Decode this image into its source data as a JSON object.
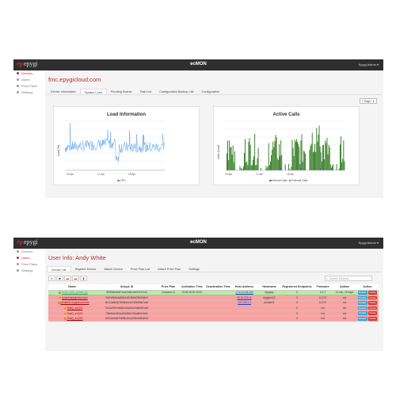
{
  "header": {
    "logo": "epygi",
    "app_title": "ecMON",
    "account": "Epygi Admin ▾",
    "colors": {
      "bar": "#2e2e2e",
      "brand": "#c0282d"
    }
  },
  "sidebar": {
    "items": [
      {
        "label": "Devices",
        "icon": "devices-icon"
      },
      {
        "label": "Users",
        "icon": "users-icon"
      },
      {
        "label": "Price Plans",
        "icon": "price-plans-icon"
      },
      {
        "label": "Settings",
        "icon": "settings-icon"
      }
    ]
  },
  "screen1": {
    "title": "fmc.epygicloud.com",
    "active_sidebar": "Devices",
    "tabs": [
      "Device Information",
      "System Load",
      "Pending Events",
      "Task List",
      "Configuration Backup List",
      "Configuration"
    ],
    "active_tab": "System Load",
    "range_select": "7 Days",
    "charts": {
      "load": {
        "title": "Load Information",
        "y_label": "Load (%)",
        "x_ticks": [
          "16 Apr",
          "17 Apr",
          "18 Apr"
        ],
        "legend": "CPU"
      },
      "calls": {
        "title": "Active Calls",
        "y_label": "Calls Count",
        "x_ticks": [
          "16 Apr",
          "17 Apr",
          "18 Apr"
        ],
        "legend": [
          "Internal Calls",
          "External Calls"
        ]
      }
    }
  },
  "chart_data": [
    {
      "type": "line",
      "title": "Load Information",
      "ylabel": "Load (%)",
      "x_ticks": [
        "16 Apr",
        "17 Apr",
        "18 Apr"
      ],
      "series": [
        {
          "name": "CPU",
          "color": "#3a8ee6"
        }
      ]
    },
    {
      "type": "bar",
      "title": "Active Calls",
      "ylabel": "Calls Count",
      "x_ticks": [
        "16 Apr",
        "17 Apr",
        "18 Apr"
      ],
      "series": [
        {
          "name": "Internal Calls",
          "color": "#2f7a1f"
        },
        {
          "name": "External Calls",
          "color": "#2d5fb8"
        }
      ]
    }
  ],
  "screen2": {
    "title": "User Info: Andy White",
    "active_sidebar": "Users",
    "tabs": [
      "Device List",
      "Register Device",
      "Attach Device",
      "Price Plan List",
      "Attach Price Plan",
      "Settings"
    ],
    "active_tab": "Device List",
    "search_placeholder": "Search Devices",
    "toolbar_icons": [
      "add-icon",
      "stop-icon",
      "folder-icon",
      "export-icon",
      "delete-icon"
    ],
    "columns": [
      "Name",
      "Unique ID",
      "Price Plan",
      "Activation Time",
      "Deactivation Time",
      "Host Address",
      "Hostname",
      "Registered Endpoints",
      "Firmware",
      "Uptime",
      "Action"
    ],
    "detail_label": "Details",
    "delete_label": "Delete",
    "rows": [
      {
        "status": "green",
        "name": "ecQX-1601_private (1)",
        "uid": "f8b59ab6e6f7ea4e5b0c4bef2e7f1d3",
        "plan": "Customer A",
        "activation": "2018-06-26 00:00",
        "deactivation": "",
        "host": "174.143.89.108",
        "hostname": "epygiqx",
        "endpoints": "0",
        "firmware": "6.2.7",
        "uptime": "11 min, 16 days"
      },
      {
        "status": "red",
        "name": "quasar.epygicloud.com",
        "uid": "f0d7e6b5c4a3f2e1d0c9b8a7f6e5d4c3",
        "plan": "",
        "activation": "",
        "deactivation": "",
        "host": "96.90.226.11",
        "hostname": "epygiecQX",
        "endpoints": "0",
        "firmware": "6.2.23",
        "uptime": "n/a"
      },
      {
        "status": "red",
        "name": "private11.epygicloud.com",
        "uid": "9b1c0a8e3d7f6b5a4c2e1f0d9b8a7c6e",
        "plan": "",
        "activation": "",
        "deactivation": "",
        "host": "192.168.1.4",
        "hostname": "private11",
        "endpoints": "0",
        "firmware": "6.2.22",
        "uptime": "n/a"
      },
      {
        "status": "red",
        "name": "TestQ_ecQX1",
        "uid": "f3c1a09b7e6d5c4b3a2f1e0d9c8b7a6f",
        "plan": "",
        "activation": "",
        "deactivation": "",
        "host": "",
        "hostname": "",
        "endpoints": "0",
        "firmware": "n/a",
        "uptime": "n/a"
      },
      {
        "status": "red",
        "name": "TestQ_ecQX2",
        "uid": "7f6e5d4c3b2a1f0e9d8c7b6a5f4e3d2c",
        "plan": "",
        "activation": "",
        "deactivation": "",
        "host": "",
        "hostname": "",
        "endpoints": "0",
        "firmware": "n/a",
        "uptime": "n/a"
      },
      {
        "status": "red",
        "name": "TestQ_ecQX3",
        "uid": "2d3c4b5a6f7e8d9c0b1a2f3e4d5c6b7a",
        "plan": "",
        "activation": "",
        "deactivation": "",
        "host": "",
        "hostname": "",
        "endpoints": "0",
        "firmware": "n/a",
        "uptime": "n/a"
      }
    ]
  }
}
